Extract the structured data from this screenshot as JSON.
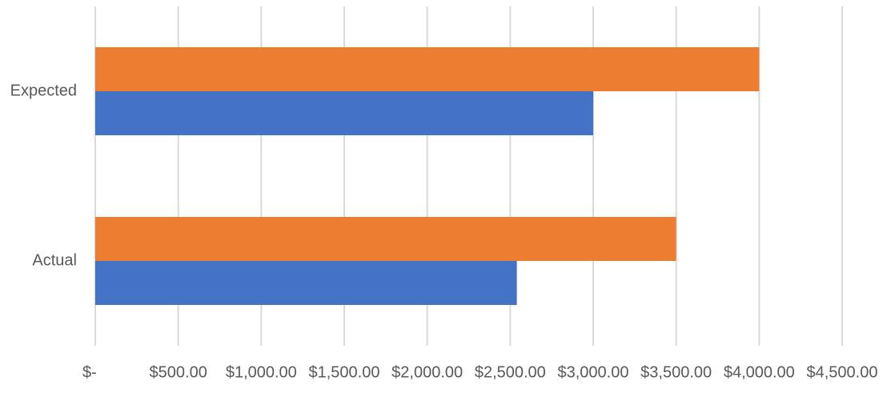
{
  "chart_data": {
    "type": "bar",
    "orientation": "horizontal",
    "categories": [
      "Expected",
      "Actual"
    ],
    "series": [
      {
        "color": "#ED7D31",
        "values": [
          4000,
          3500
        ]
      },
      {
        "color": "#4472C4",
        "values": [
          3000,
          2540
        ]
      }
    ],
    "x_ticks": [
      0,
      500,
      1000,
      1500,
      2000,
      2500,
      3000,
      3500,
      4000,
      4500
    ],
    "x_tick_labels": [
      "$-",
      "$500.00",
      "$1,000.00",
      "$1,500.00",
      "$2,000.00",
      "$2,500.00",
      "$3,000.00",
      "$3,500.00",
      "$4,000.00",
      "$4,500.00"
    ],
    "xlim": [
      0,
      4500
    ],
    "grid": "vertical",
    "legend": "none",
    "gridline_color": "#D9D9D9",
    "label_color": "#595959"
  }
}
